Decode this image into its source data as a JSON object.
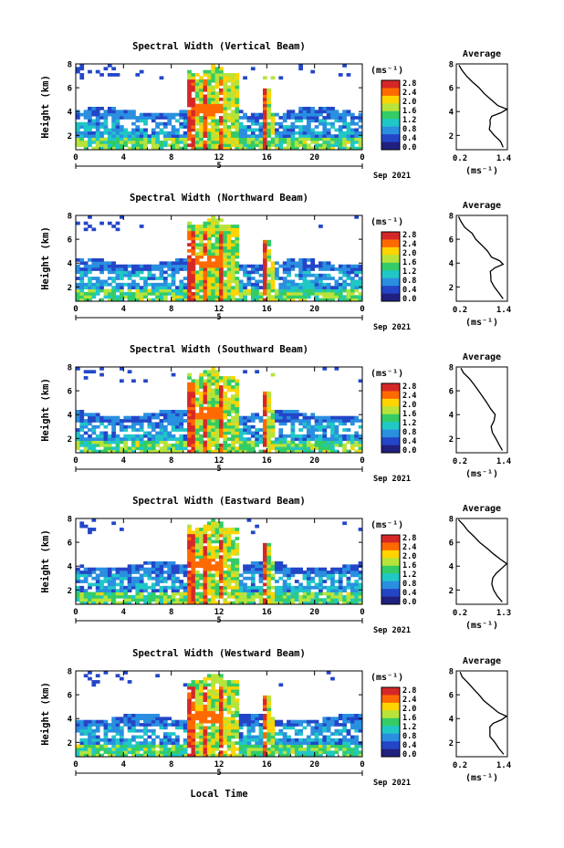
{
  "figure": {
    "x_axis_label": "Local Time",
    "colorbar_unit": "(ms⁻¹)",
    "colorbar_ticks": [
      "2.8",
      "2.4",
      "2.0",
      "1.6",
      "1.2",
      "0.8",
      "0.4",
      "0.0"
    ],
    "colorbar_colors": [
      "#d62728",
      "#ff6a00",
      "#ffd400",
      "#b7e33b",
      "#33cc66",
      "#20c7c7",
      "#2a8fe0",
      "#2346c8",
      "#202080"
    ],
    "x_ticks": [
      "0",
      "4",
      "8",
      "12",
      "16",
      "20",
      "0"
    ],
    "date_marker": "5",
    "date_label": "Sep 2021",
    "y_ticks": [
      "2",
      "4",
      "6",
      "8"
    ],
    "avg_title": "Average",
    "avg_unit": "(ms⁻¹)",
    "avg_y_ticks": [
      "2",
      "4",
      "6",
      "8"
    ]
  },
  "chart_data": [
    {
      "type": "heatmap",
      "title": "Spectral Width (Vertical Beam)",
      "ylabel": "Height (km)",
      "xlabel": "",
      "xlim": [
        0,
        24
      ],
      "ylim": [
        0.8,
        8.0
      ],
      "avg_xlim": [
        0.2,
        1.4
      ],
      "avg_xticks": [
        "0.2",
        "1.4"
      ],
      "avg_profile": {
        "height": [
          1.0,
          1.5,
          2.0,
          2.5,
          3.0,
          3.3,
          3.6,
          3.9,
          4.2,
          4.5,
          5.0,
          5.5,
          6.0,
          6.5,
          7.0,
          7.5,
          7.9
        ],
        "width": [
          1.32,
          1.22,
          1.08,
          0.98,
          1.0,
          0.98,
          1.05,
          1.25,
          1.38,
          1.18,
          1.0,
          0.85,
          0.72,
          0.58,
          0.45,
          0.35,
          0.28
        ]
      }
    },
    {
      "type": "heatmap",
      "title": "Spectral Width (Northward Beam)",
      "ylabel": "Height (km)",
      "xlabel": "",
      "xlim": [
        0,
        24
      ],
      "ylim": [
        0.8,
        8.0
      ],
      "avg_xlim": [
        0.2,
        1.4
      ],
      "avg_xticks": [
        "0.2",
        "1.4"
      ],
      "avg_profile": {
        "height": [
          1.0,
          1.5,
          2.0,
          2.5,
          3.0,
          3.3,
          3.6,
          3.9,
          4.2,
          4.5,
          5.0,
          5.5,
          6.0,
          6.5,
          7.0,
          7.5,
          7.9
        ],
        "width": [
          1.3,
          1.18,
          1.08,
          1.0,
          1.02,
          0.98,
          1.1,
          1.3,
          1.2,
          1.05,
          0.92,
          0.8,
          0.66,
          0.55,
          0.42,
          0.32,
          0.25
        ]
      }
    },
    {
      "type": "heatmap",
      "title": "Spectral Width (Southward Beam)",
      "ylabel": "Height (km)",
      "xlabel": "",
      "xlim": [
        0,
        24
      ],
      "ylim": [
        0.8,
        8.0
      ],
      "avg_xlim": [
        0.2,
        1.4
      ],
      "avg_xticks": [
        "0.2",
        "1.4"
      ],
      "avg_profile": {
        "height": [
          1.0,
          1.5,
          2.0,
          2.5,
          3.0,
          3.5,
          4.0,
          4.5,
          5.0,
          5.5,
          6.0,
          6.5,
          7.0,
          7.5,
          7.9
        ],
        "width": [
          1.28,
          1.2,
          1.12,
          1.05,
          1.02,
          1.08,
          1.1,
          1.0,
          0.92,
          0.82,
          0.72,
          0.6,
          0.5,
          0.38,
          0.3
        ]
      }
    },
    {
      "type": "heatmap",
      "title": "Spectral Width (Eastward Beam)",
      "ylabel": "Height (km)",
      "xlabel": "",
      "xlim": [
        0,
        24
      ],
      "ylim": [
        0.8,
        8.0
      ],
      "avg_xlim": [
        0.2,
        1.3
      ],
      "avg_xticks": [
        "0.2",
        "1.3"
      ],
      "avg_profile": {
        "height": [
          1.0,
          1.5,
          2.0,
          2.5,
          3.0,
          3.4,
          3.8,
          4.2,
          4.6,
          5.0,
          5.5,
          6.0,
          6.5,
          7.0,
          7.5,
          7.9
        ],
        "width": [
          1.18,
          1.1,
          1.02,
          0.95,
          1.0,
          1.05,
          1.18,
          1.28,
          1.15,
          1.0,
          0.86,
          0.72,
          0.58,
          0.45,
          0.34,
          0.26
        ]
      }
    },
    {
      "type": "heatmap",
      "title": "Spectral Width (Westward Beam)",
      "ylabel": "Height (km)",
      "xlabel": "Local Time",
      "xlim": [
        0,
        24
      ],
      "ylim": [
        0.8,
        8.0
      ],
      "avg_xlim": [
        0.2,
        1.4
      ],
      "avg_xticks": [
        "0.2",
        "1.4"
      ],
      "avg_profile": {
        "height": [
          1.0,
          1.5,
          2.0,
          2.5,
          3.0,
          3.3,
          3.6,
          3.9,
          4.2,
          4.5,
          5.0,
          5.5,
          6.0,
          6.5,
          7.0,
          7.5,
          7.9
        ],
        "width": [
          1.32,
          1.2,
          1.08,
          0.98,
          1.0,
          0.98,
          1.05,
          1.25,
          1.36,
          1.18,
          1.0,
          0.86,
          0.74,
          0.6,
          0.48,
          0.36,
          0.28
        ]
      }
    }
  ]
}
